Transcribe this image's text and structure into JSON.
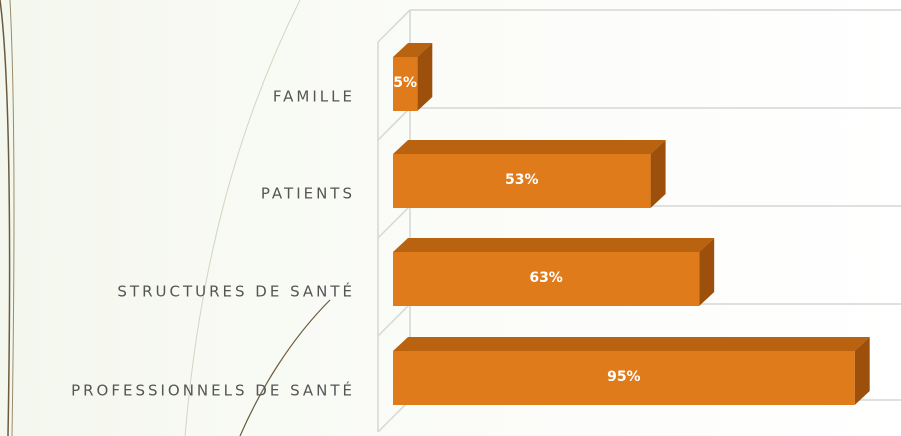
{
  "chart_data": {
    "type": "bar3d_horizontal",
    "categories": [
      "FAMILLE",
      "PATIENTS",
      "STRUCTURES DE SANTÉ",
      "PROFESSIONNELS DE SANTÉ"
    ],
    "values": [
      5,
      53,
      63,
      95
    ],
    "value_labels": [
      "5%",
      "53%",
      "63%",
      "95%"
    ],
    "color": "#e07b1b",
    "xlim": [
      0,
      100
    ]
  }
}
